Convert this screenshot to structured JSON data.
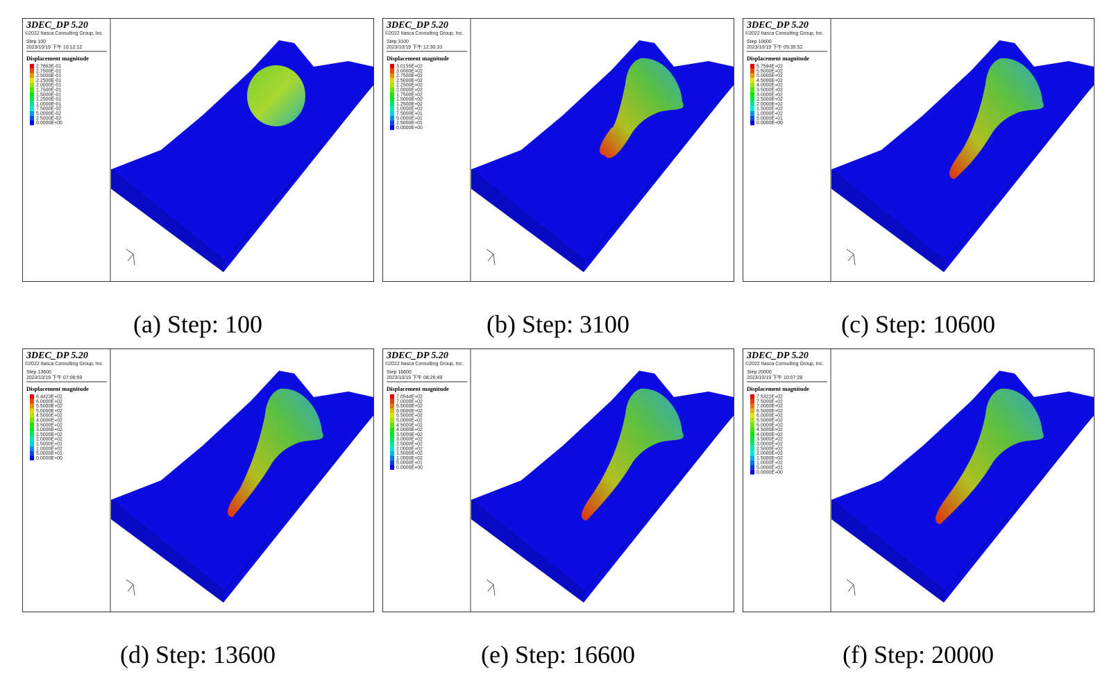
{
  "panels": [
    {
      "title": "3DEC_DP 5.20",
      "copyright": "©2022 Itasca Consulting Group, Inc.",
      "step": "Step 100",
      "date": "2023/10/19 下午 10:12:12",
      "legend_title": "Displacement magnitude",
      "legend": [
        "2.7863E-01",
        "2.7500E-01",
        "2.5000E-01",
        "2.2500E-01",
        "2.0000E-01",
        "1.7500E-01",
        "1.5000E-01",
        "1.2500E-01",
        "1.0000E-01",
        "7.5000E-02",
        "5.0000E-02",
        "2.5000E-02",
        "0.0000E+00"
      ],
      "caption": "(a) Step: 100"
    },
    {
      "title": "3DEC_DP 5.20",
      "copyright": "©2022 Itasca Consulting Group, Inc.",
      "step": "Step 3100",
      "date": "2023/10/19 下午 12:30:10",
      "legend_title": "Displacement magnitude",
      "legend": [
        "3.0155E+02",
        "3.0000E+02",
        "2.7500E+02",
        "2.5000E+02",
        "2.2500E+02",
        "2.0000E+02",
        "1.7500E+02",
        "1.5000E+02",
        "1.2500E+02",
        "1.0000E+02",
        "7.5000E+01",
        "5.0000E+01",
        "2.5000E+01",
        "0.0000E+00"
      ],
      "caption": "(b) Step: 3100"
    },
    {
      "title": "3DEC_DP 5.20",
      "copyright": "©2022 Itasca Consulting Group, Inc.",
      "step": "Step 10600",
      "date": "2023/10/19 下午 05:35:52",
      "legend_title": "Displacement magnitude",
      "legend": [
        "5.7594E+02",
        "5.5000E+02",
        "5.0000E+02",
        "4.5000E+02",
        "4.0000E+02",
        "3.5000E+02",
        "3.0000E+02",
        "2.5000E+02",
        "2.0000E+02",
        "1.5000E+02",
        "1.0000E+02",
        "5.0000E+01",
        "0.0000E+00"
      ],
      "caption": "(c) Step: 10600"
    },
    {
      "title": "3DEC_DP 5.20",
      "copyright": "©2022 Itasca Consulting Group, Inc.",
      "step": "Step 13600",
      "date": "2023/10/19 下午 07:06:59",
      "legend_title": "Displacement magnitude",
      "legend": [
        "6.4423E+02",
        "6.0000E+02",
        "5.5000E+02",
        "5.0000E+02",
        "4.5000E+02",
        "4.0000E+02",
        "3.5000E+02",
        "3.0000E+02",
        "2.5000E+02",
        "2.0000E+02",
        "1.5000E+02",
        "1.0000E+02",
        "5.0000E+01",
        "0.0000E+00"
      ],
      "caption": "(d) Step: 13600"
    },
    {
      "title": "3DEC_DP 5.20",
      "copyright": "©2022 Itasca Consulting Group, Inc.",
      "step": "Step 16600",
      "date": "2023/10/19 下午 08:26:49",
      "legend_title": "Displacement magnitude",
      "legend": [
        "7.0544E+02",
        "7.0000E+02",
        "6.5000E+02",
        "6.0000E+02",
        "5.5000E+02",
        "5.0000E+02",
        "4.5000E+02",
        "4.0000E+02",
        "3.5000E+02",
        "3.0000E+02",
        "2.5000E+02",
        "2.0000E+02",
        "1.5000E+02",
        "1.0000E+02",
        "5.0000E+01",
        "0.0000E+00"
      ],
      "caption": "(e) Step: 16600"
    },
    {
      "title": "3DEC_DP 5.20",
      "copyright": "©2022 Itasca Consulting Group, Inc.",
      "step": "Step 20000",
      "date": "2023/10/19 下午 10:07:28",
      "legend_title": "Displacement magnitude",
      "legend": [
        "7.5322E+02",
        "7.5000E+02",
        "7.0000E+02",
        "6.5000E+02",
        "6.0000E+02",
        "5.5000E+02",
        "5.0000E+02",
        "4.5000E+02",
        "4.0000E+02",
        "3.5000E+02",
        "3.0000E+02",
        "2.5000E+02",
        "2.0000E+02",
        "1.5000E+02",
        "1.0000E+02",
        "5.0000E+01",
        "0.0000E+00"
      ],
      "caption": "(f) Step: 20000"
    }
  ]
}
